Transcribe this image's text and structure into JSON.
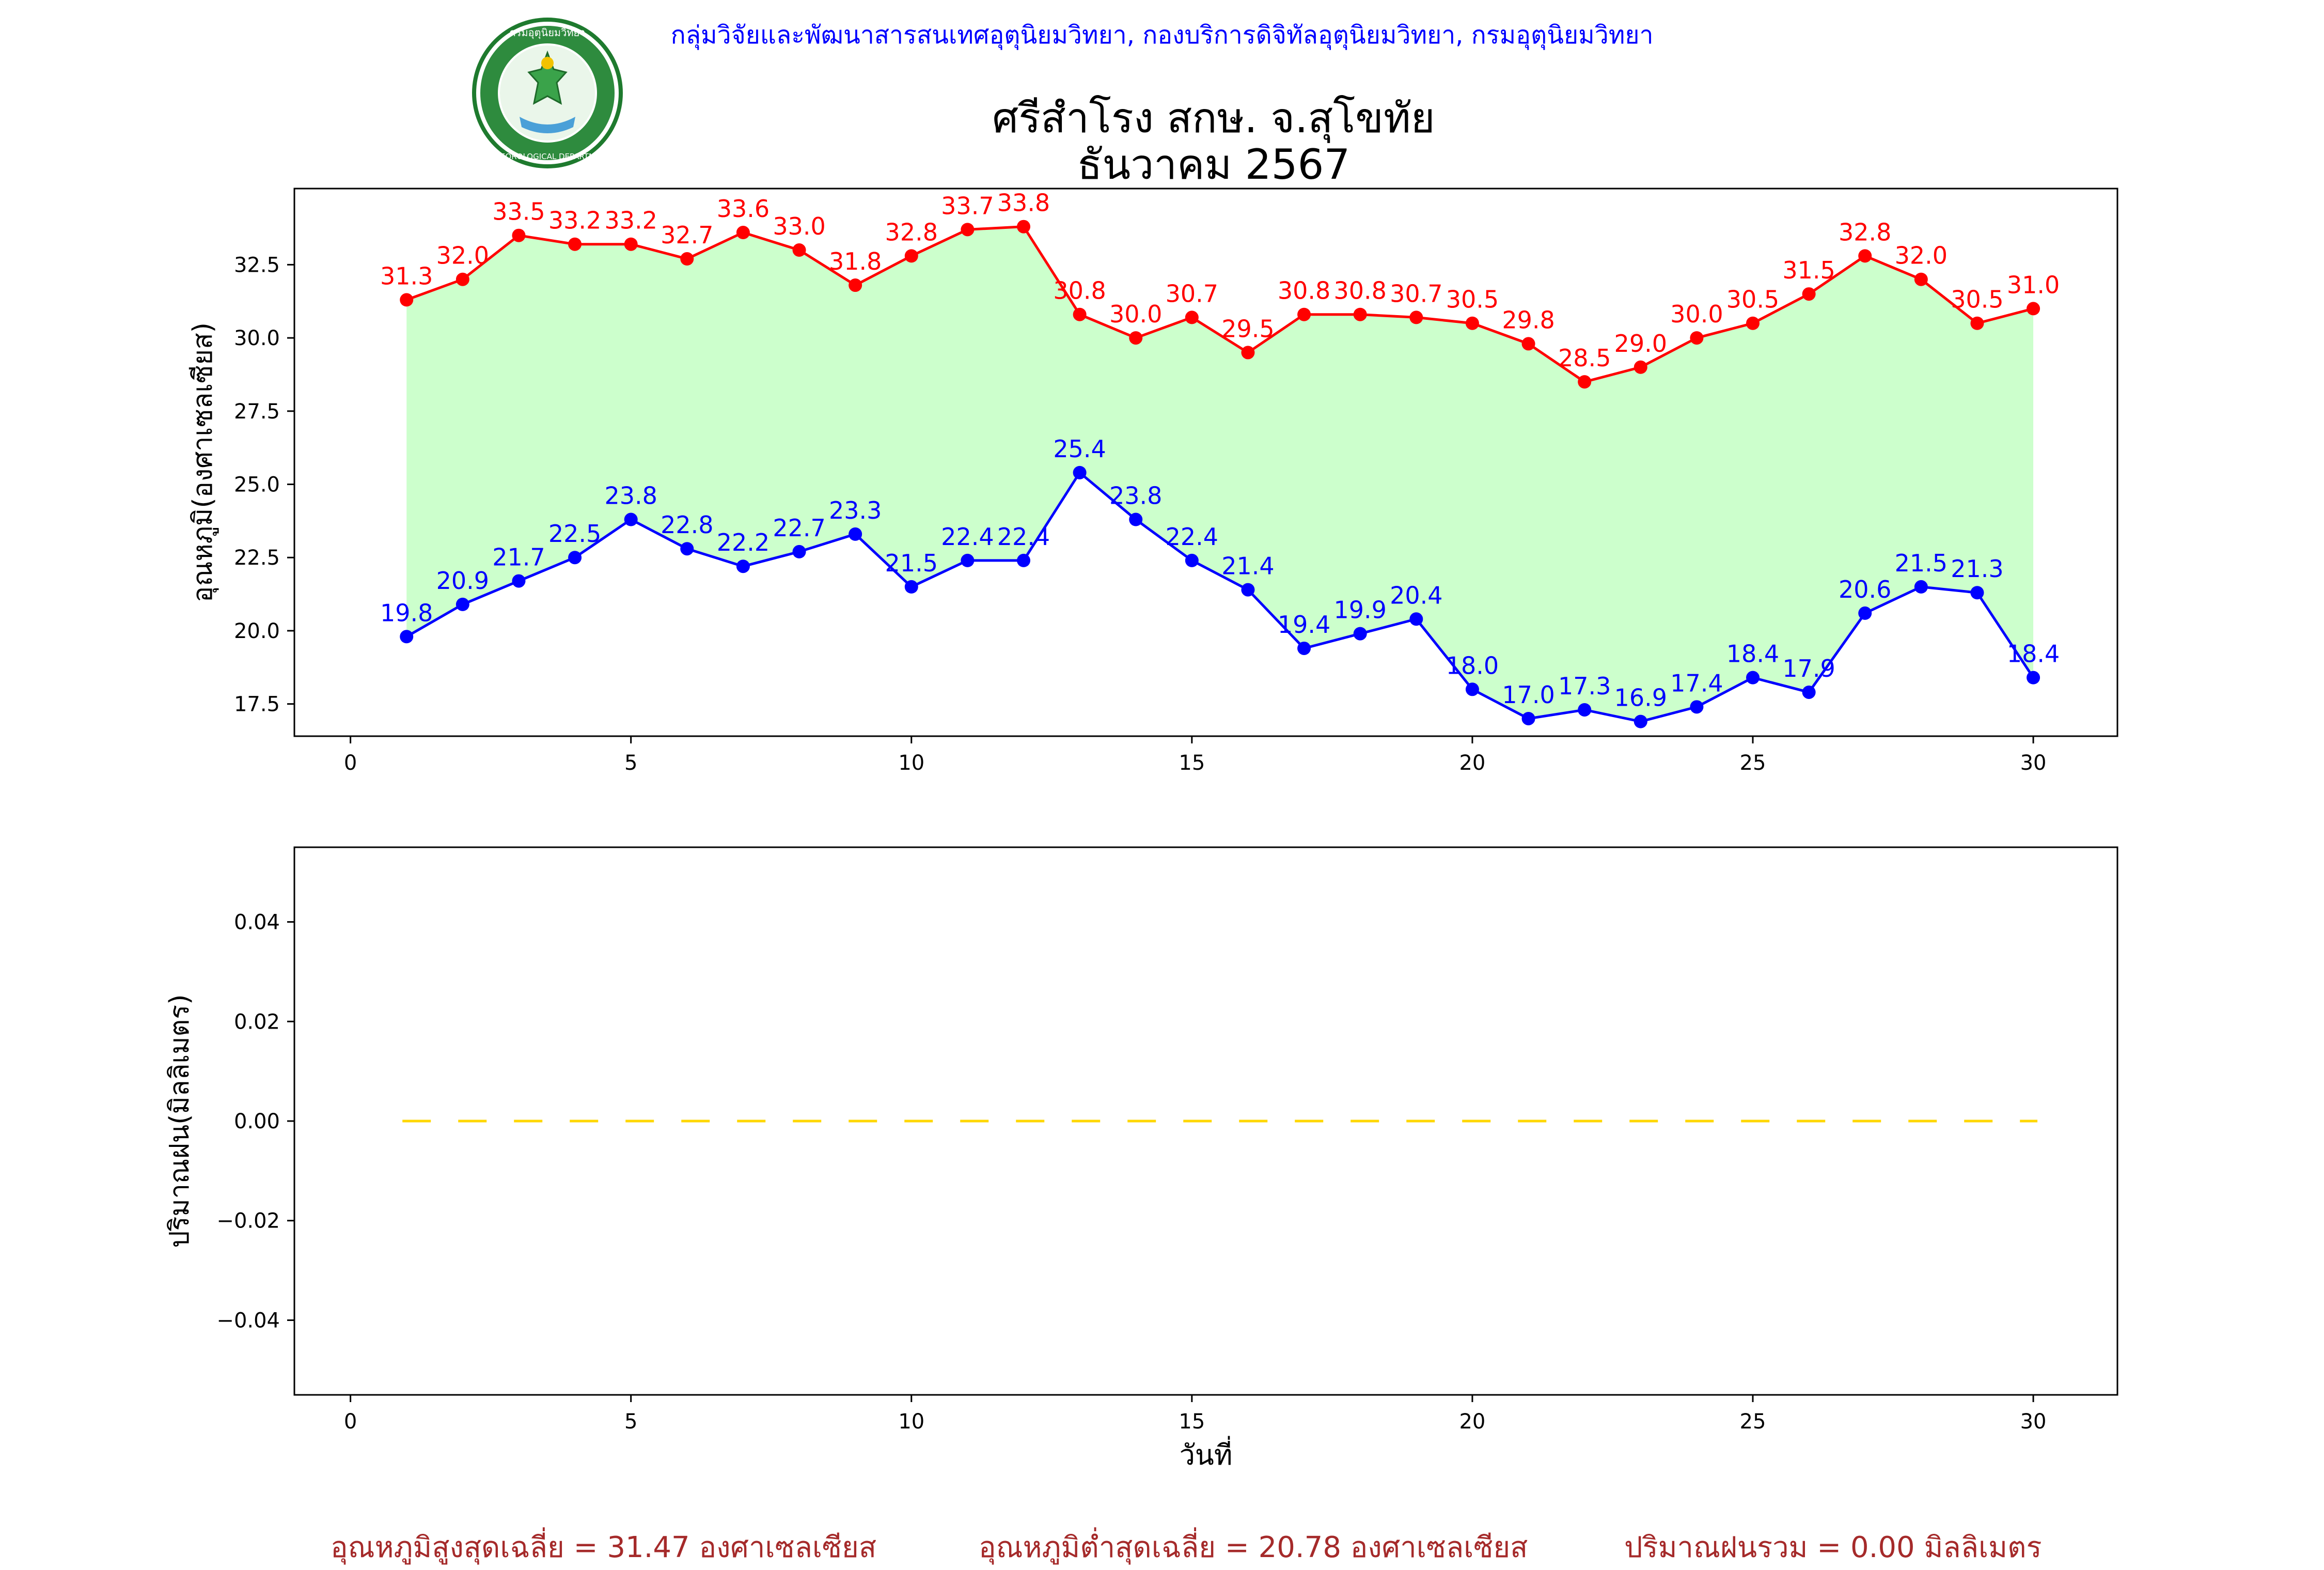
{
  "header": {
    "department_line": "กลุ่มวิจัยและพัฒนาสารสนเทศอุตุนิยมวิทยา, กองบริการดิจิทัลอุตุนิยมวิทยา, กรมอุตุนิยมวิทยา",
    "logo_text": "กรมอุตุนิยมวิทยา METEOROLOGICAL DEPARTMENT",
    "title": "ศรีสำโรง สกษ. จ.สุโขทัย",
    "subtitle": "ธันวาคม 2567"
  },
  "footer": {
    "avg_max": "อุณหภูมิสูงสุดเฉลี่ย = 31.47 องศาเซลเซียส",
    "avg_min": "อุณหภูมิต่ำสุดเฉลี่ย = 20.78 องศาเซลเซียส",
    "total_rain": "ปริมาณฝนรวม = 0.00 มิลลิเมตร"
  },
  "colors": {
    "max_line": "#ff0000",
    "min_line": "#0000ff",
    "fill": "#ccffcc",
    "rain_line": "#ffd700",
    "header_text": "#0000ff",
    "footer_text": "#a52a2a"
  },
  "chart_data": [
    {
      "type": "line",
      "ylabel": "อุณหภูมิ(องศาเซลเซียส)",
      "xlabel": "",
      "xlim": [
        -1,
        31.5
      ],
      "ylim": [
        16.4,
        35.1
      ],
      "xticks": [
        0,
        5,
        10,
        15,
        20,
        25,
        30
      ],
      "yticks": [
        17.5,
        20.0,
        22.5,
        25.0,
        27.5,
        30.0,
        32.5
      ],
      "ytick_labels": [
        "17.5",
        "20.0",
        "22.5",
        "25.0",
        "27.5",
        "30.0",
        "32.5"
      ],
      "grid": false,
      "x": [
        1,
        2,
        3,
        4,
        5,
        6,
        7,
        8,
        9,
        10,
        11,
        12,
        13,
        14,
        15,
        16,
        17,
        18,
        19,
        20,
        21,
        22,
        23,
        24,
        25,
        26,
        27,
        28,
        29,
        30
      ],
      "series": [
        {
          "key": "max",
          "values": [
            31.3,
            32.0,
            33.5,
            33.2,
            33.2,
            32.7,
            33.6,
            33.0,
            31.8,
            32.8,
            33.7,
            33.8,
            30.8,
            30.0,
            30.7,
            29.5,
            30.8,
            30.8,
            30.7,
            30.5,
            29.8,
            28.5,
            29.0,
            30.0,
            30.5,
            31.5,
            32.8,
            32.0,
            30.5,
            31.0
          ]
        },
        {
          "key": "min",
          "values": [
            19.8,
            20.9,
            21.7,
            22.5,
            23.8,
            22.8,
            22.2,
            22.7,
            23.3,
            21.5,
            22.4,
            22.4,
            25.4,
            23.8,
            22.4,
            21.4,
            19.4,
            19.9,
            20.4,
            18.0,
            17.0,
            17.3,
            16.9,
            17.4,
            18.4,
            17.9,
            20.6,
            21.5,
            21.3,
            18.4
          ]
        }
      ]
    },
    {
      "type": "line",
      "ylabel": "ปริมาณฝน(มิลลิเมตร)",
      "xlabel": "วันที่",
      "xlim": [
        -1,
        31.5
      ],
      "ylim": [
        -0.055,
        0.055
      ],
      "xticks": [
        0,
        5,
        10,
        15,
        20,
        25,
        30
      ],
      "yticks": [
        -0.04,
        -0.02,
        0.0,
        0.02,
        0.04
      ],
      "ytick_labels": [
        "−0.04",
        "−0.02",
        "0.00",
        "0.02",
        "0.04"
      ],
      "grid": false,
      "x": [
        1,
        30
      ],
      "series": [
        {
          "key": "rain",
          "values": [
            0.0,
            0.0
          ]
        }
      ]
    }
  ]
}
